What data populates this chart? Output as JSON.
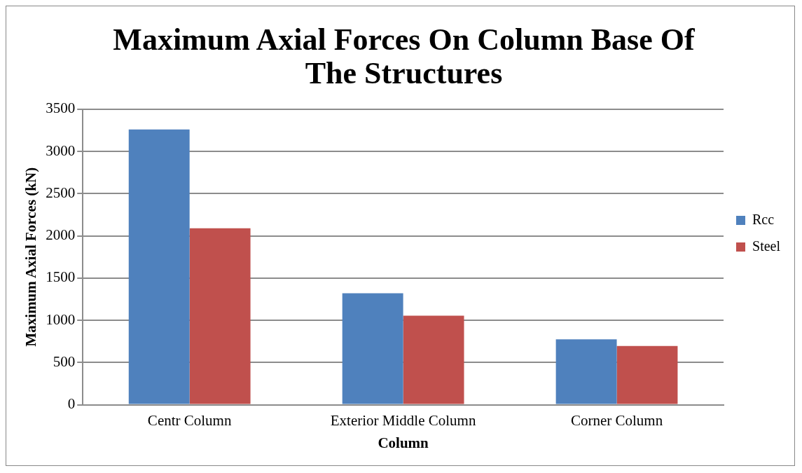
{
  "chart_data": {
    "type": "bar",
    "title": "Maximum Axial Forces On Column Base Of The Structures",
    "xlabel": "Column",
    "ylabel": "Maximum Axial Forces (kN)",
    "categories": [
      "Centr Column",
      "Exterior Middle Column",
      "Corner Column"
    ],
    "series": [
      {
        "name": "Rcc",
        "color": "#4f81bd",
        "values": [
          3260,
          1320,
          775
        ]
      },
      {
        "name": "Steel",
        "color": "#c0504d",
        "values": [
          2090,
          1055,
          695
        ]
      }
    ],
    "ylim": [
      0,
      3500
    ],
    "yticks": [
      0,
      500,
      1000,
      1500,
      2000,
      2500,
      3000,
      3500
    ],
    "grid": "y",
    "legend": "right"
  }
}
